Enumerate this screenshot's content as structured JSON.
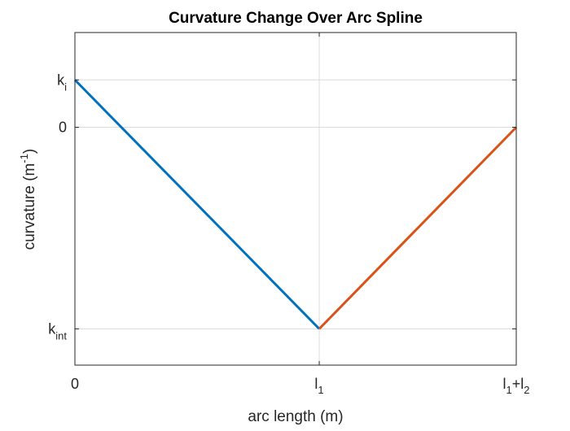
{
  "chart_data": {
    "type": "line",
    "title": "Curvature Change Over Arc Spline",
    "xlabel": {
      "main": "arc length (m)"
    },
    "ylabel": {
      "main": "curvature (m",
      "sup": "-1",
      "tail": ")"
    },
    "xlim": [
      0,
      1.0
    ],
    "ylim": [
      -1.18,
      0.47
    ],
    "grid": true,
    "xticks": [
      {
        "value": 0,
        "base": "0",
        "sub": "",
        "plus": "",
        "base2": "",
        "sub2": ""
      },
      {
        "value": 0.5536,
        "base": "l",
        "sub": "1",
        "plus": "",
        "base2": "",
        "sub2": ""
      },
      {
        "value": 1.0,
        "base": "l",
        "sub": "1",
        "plus": "+",
        "base2": "l",
        "sub2": "2"
      }
    ],
    "yticks": [
      {
        "value": 0.235,
        "base": "k",
        "sub": "i"
      },
      {
        "value": 0,
        "base": "0",
        "sub": ""
      },
      {
        "value": -1.0,
        "base": "k",
        "sub": "int"
      }
    ],
    "series": [
      {
        "color": "#0072BD",
        "x": [
          0,
          0.5536
        ],
        "y": [
          0.235,
          -1.0
        ]
      },
      {
        "color": "#D95319",
        "x": [
          0.5536,
          1.0
        ],
        "y": [
          -1.0,
          0
        ]
      }
    ]
  }
}
